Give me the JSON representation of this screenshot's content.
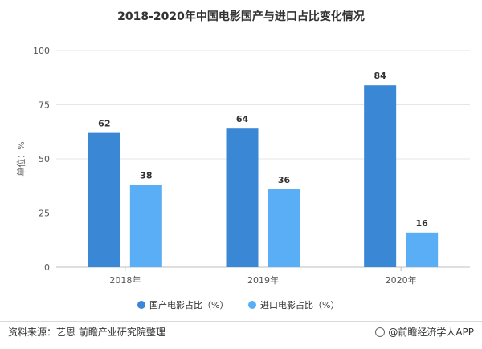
{
  "chart_data": {
    "type": "bar",
    "title": "2018-2020年中国电影国产与进口占比变化情况",
    "ylabel": "单位：%",
    "xlabel": "",
    "categories": [
      "2018年",
      "2019年",
      "2020年"
    ],
    "ylim": [
      0,
      100
    ],
    "yticks": [
      0,
      25,
      50,
      75,
      100
    ],
    "grid": true,
    "legend_position": "bottom",
    "series": [
      {
        "name": "国产电影占比（%）",
        "values": [
          62,
          64,
          84
        ],
        "color": "#3a87d6"
      },
      {
        "name": "进口电影占比（%）",
        "values": [
          38,
          36,
          16
        ],
        "color": "#5aaef5"
      }
    ]
  },
  "footer": {
    "source": "资料来源：艺恩 前瞻产业研究院整理",
    "brand": "@前瞻经济学人APP"
  }
}
